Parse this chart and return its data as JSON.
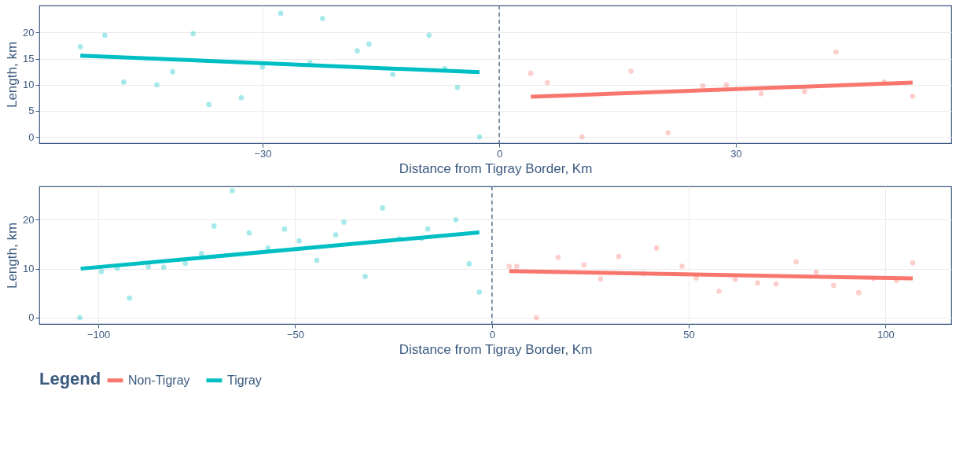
{
  "chart_data": [
    {
      "type": "scatter",
      "xlabel": "Distance from Tigray Border, Km",
      "ylabel": "Length, km",
      "xlim": [
        -58.3,
        57.3
      ],
      "ylim": [
        -1.2,
        25.2
      ],
      "xticks": [
        -30,
        0,
        30
      ],
      "yticks": [
        0,
        5,
        10,
        15,
        20
      ],
      "grid": true,
      "legend": "bottom",
      "legend_title": "Legend",
      "series": [
        {
          "color": "#00bfc4",
          "marker": "circle",
          "x": [
            -53.1,
            -50.0,
            -47.6,
            -43.4,
            -41.4,
            -38.8,
            -36.8,
            -32.7,
            -30.0,
            -27.7,
            -24.0,
            -22.4,
            -18.0,
            -16.5,
            -13.5,
            -8.9,
            -6.9,
            -5.3,
            -2.5
          ],
          "values": [
            17.3,
            19.5,
            10.5,
            10.0,
            12.5,
            19.8,
            6.2,
            7.5,
            13.4,
            23.7,
            14.2,
            22.7,
            16.5,
            17.8,
            12.0,
            19.5,
            13.1,
            9.5,
            0
          ]
        },
        {
          "color": "#f8766d",
          "marker": "circle",
          "x": [
            4.0,
            6.1,
            10.5,
            16.7,
            21.4,
            25.8,
            28.8,
            33.2,
            38.7,
            42.7,
            48.8,
            52.4
          ],
          "values": [
            12.2,
            10.4,
            0,
            12.6,
            0.8,
            9.8,
            10.0,
            8.3,
            8.7,
            16.3,
            10.5,
            7.8
          ]
        },
        {
          "name": "Non-Tigray",
          "type": "line",
          "color": "#f8766d",
          "x": [
            4.0,
            52.4
          ],
          "values": [
            7.7,
            10.4
          ]
        },
        {
          "name": "Tigray",
          "type": "line",
          "color": "#00bfc4",
          "x": [
            -53.1,
            -2.5
          ],
          "values": [
            15.6,
            12.4
          ]
        }
      ],
      "ref_lines": [
        {
          "axis": "x",
          "value": 0,
          "line_style": "dashed",
          "color": "#3b5a7f"
        }
      ]
    },
    {
      "type": "scatter",
      "xlabel": "Distance from Tigray Border, Km",
      "ylabel": "Length, km",
      "xlim": [
        -115,
        116.7
      ],
      "ylim": [
        -1.3,
        26.8
      ],
      "xticks": [
        -100,
        -50,
        0,
        50,
        100
      ],
      "yticks": [
        0,
        10,
        20
      ],
      "grid": true,
      "legend": "bottom",
      "series": [
        {
          "color": "#00bfc4",
          "marker": "circle",
          "x": [
            -104.7,
            -99.2,
            -95.2,
            -92.1,
            -87.3,
            -83.4,
            -77.9,
            -73.8,
            -70.6,
            -66.0,
            -61.7,
            -56.9,
            -52.7,
            -49.0,
            -44.5,
            -39.7,
            -37.6,
            -32.2,
            -27.8,
            -23.5,
            -17.8,
            -16.3,
            -9.2,
            -5.8,
            -3.2
          ],
          "values": [
            0,
            9.4,
            10.1,
            4.0,
            10.4,
            10.3,
            11.1,
            13.1,
            18.7,
            25.9,
            17.3,
            14.2,
            18.1,
            15.7,
            11.7,
            16.9,
            19.5,
            8.4,
            22.4,
            16.1,
            16.2,
            18.1,
            20.0,
            11.0,
            5.2
          ]
        },
        {
          "color": "#f8766d",
          "marker": "circle",
          "x": [
            4.4,
            6.3,
            11.3,
            16.8,
            23.4,
            27.6,
            32.2,
            38.4,
            41.8,
            48.3,
            51.9,
            57.7,
            61.8,
            67.5,
            72.2,
            77.3,
            82.4,
            86.8,
            93.2,
            96.9,
            102.8,
            106.9
          ],
          "values": [
            10.5,
            10.5,
            0,
            12.3,
            10.8,
            7.9,
            12.5,
            9.0,
            14.2,
            10.5,
            8.1,
            5.4,
            7.8,
            7.1,
            6.9,
            11.4,
            9.3,
            6.6,
            5.1,
            8.0,
            7.6,
            11.2
          ]
        },
        {
          "name": "Non-Tigray",
          "type": "line",
          "color": "#f8766d",
          "x": [
            4.4,
            106.9
          ],
          "values": [
            9.5,
            8.0
          ]
        },
        {
          "name": "Tigray",
          "type": "line",
          "color": "#00bfc4",
          "x": [
            -104.5,
            -3.2
          ],
          "values": [
            10.0,
            17.4
          ]
        }
      ],
      "ref_lines": [
        {
          "axis": "x",
          "value": 0,
          "line_style": "dashed",
          "color": "#3b5a7f"
        }
      ]
    }
  ]
}
